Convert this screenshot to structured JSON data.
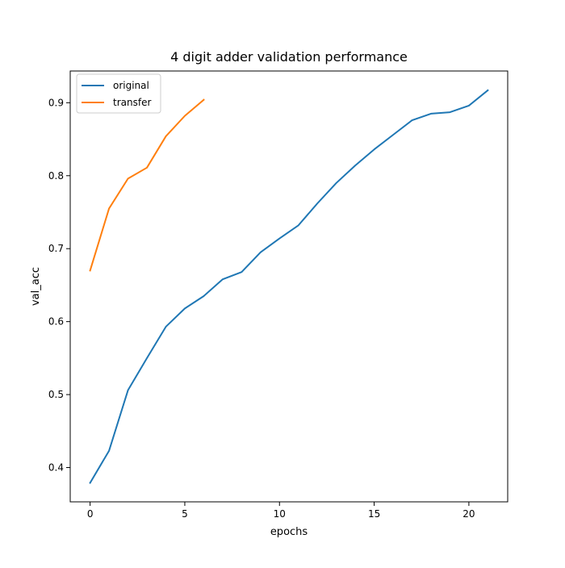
{
  "chart_data": {
    "type": "line",
    "title": "4 digit adder validation performance",
    "xlabel": "epochs",
    "ylabel": "val_acc",
    "xlim": [
      -1.05,
      22.05
    ],
    "ylim": [
      0.353,
      0.9435
    ],
    "xticks": [
      0,
      5,
      10,
      15,
      20
    ],
    "xtick_labels": [
      "0",
      "5",
      "10",
      "15",
      "20"
    ],
    "yticks": [
      0.4,
      0.5,
      0.6,
      0.7,
      0.8,
      0.9
    ],
    "ytick_labels": [
      "0.4",
      "0.5",
      "0.6",
      "0.7",
      "0.8",
      "0.9"
    ],
    "grid": false,
    "legend_position": "upper-left",
    "series": [
      {
        "name": "original",
        "color": "#1f77b4",
        "x": [
          0,
          1,
          2,
          3,
          4,
          5,
          6,
          7,
          8,
          9,
          10,
          11,
          12,
          13,
          14,
          15,
          16,
          17,
          18,
          19,
          20,
          21
        ],
        "y": [
          0.379,
          0.423,
          0.506,
          0.55,
          0.593,
          0.618,
          0.635,
          0.658,
          0.668,
          0.695,
          0.714,
          0.732,
          0.762,
          0.79,
          0.814,
          0.836,
          0.856,
          0.876,
          0.885,
          0.887,
          0.896,
          0.917
        ]
      },
      {
        "name": "transfer",
        "color": "#ff7f0e",
        "x": [
          0,
          1,
          2,
          3,
          4,
          5,
          6
        ],
        "y": [
          0.67,
          0.755,
          0.796,
          0.811,
          0.854,
          0.882,
          0.904
        ]
      }
    ]
  }
}
